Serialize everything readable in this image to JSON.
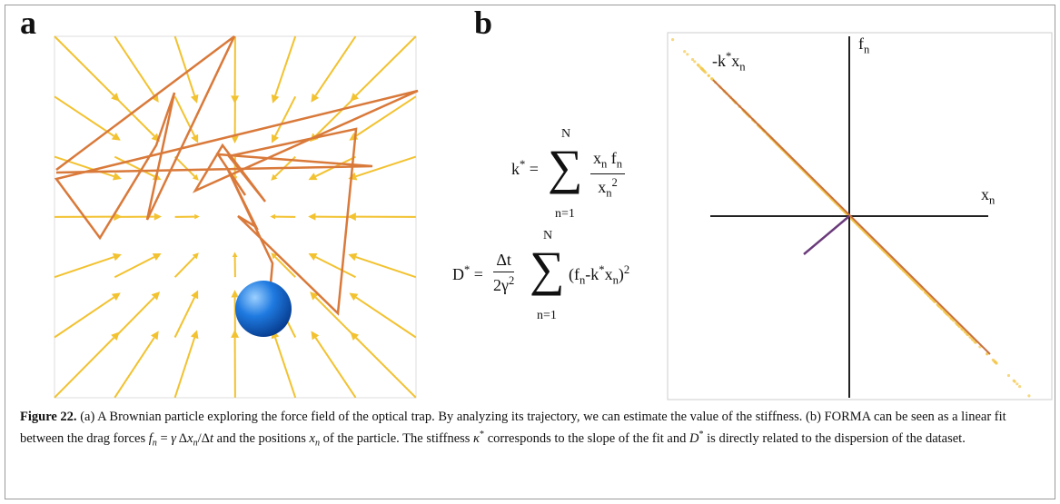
{
  "panel_a": {
    "label": "a"
  },
  "panel_b": {
    "label": "b",
    "axis_labels": {
      "y": [
        {
          "text": "f"
        },
        {
          "text": "n",
          "pos": "sub"
        }
      ],
      "x": [
        {
          "text": "x"
        },
        {
          "text": "n",
          "pos": "sub"
        }
      ],
      "fit": [
        {
          "text": "-k"
        },
        {
          "text": "*",
          "pos": "sup"
        },
        {
          "text": "x"
        },
        {
          "text": "n",
          "pos": "sub"
        }
      ]
    }
  },
  "formulas": {
    "stiffness": {
      "lhs": [
        {
          "text": "k"
        },
        {
          "text": "*",
          "pos": "sup"
        },
        {
          "text": " ="
        }
      ],
      "sum": "∑",
      "upper": "N",
      "lower": "n=1",
      "numerator": [
        {
          "text": "x"
        },
        {
          "text": "n",
          "pos": "sub"
        },
        {
          "text": " f"
        },
        {
          "text": "n",
          "pos": "sub"
        }
      ],
      "denominator": [
        {
          "text": "x"
        },
        {
          "text": "n",
          "pos": "sub"
        },
        {
          "text": "2",
          "pos": "sup"
        }
      ]
    },
    "diffusion": {
      "lhs": [
        {
          "text": "D"
        },
        {
          "text": "*",
          "pos": "sup"
        },
        {
          "text": " ="
        }
      ],
      "prefactor_num": [
        {
          "text": "Δt"
        }
      ],
      "prefactor_den": [
        {
          "text": "2γ"
        },
        {
          "text": "2",
          "pos": "sup"
        }
      ],
      "sum": "∑",
      "upper": "N",
      "lower": "n=1",
      "term": [
        {
          "text": "(f"
        },
        {
          "text": "n",
          "pos": "sub"
        },
        {
          "text": "-k"
        },
        {
          "text": "*",
          "pos": "sup"
        },
        {
          "text": "x"
        },
        {
          "text": "n",
          "pos": "sub"
        },
        {
          "text": ")"
        },
        {
          "text": "2",
          "pos": "sup"
        }
      ]
    }
  },
  "caption": [
    {
      "text": "Figure 22.",
      "style": "bold"
    },
    {
      "text": " (a) A Brownian particle exploring the force field of the optical trap. By analyzing its trajectory, we can estimate the value of the stiffness. (b) FORMA can be seen as a linear fit between the drag forces "
    },
    {
      "text": "f",
      "style": "italic"
    },
    {
      "text": "n",
      "style": "italic",
      "pos": "sub"
    },
    {
      "text": " = "
    },
    {
      "text": "γ",
      "style": "italic"
    },
    {
      "text": " Δ"
    },
    {
      "text": "x",
      "style": "italic"
    },
    {
      "text": "n",
      "style": "italic",
      "pos": "sub"
    },
    {
      "text": "/Δ"
    },
    {
      "text": "t",
      "style": "italic"
    },
    {
      "text": " and the positions "
    },
    {
      "text": "x",
      "style": "italic"
    },
    {
      "text": "n",
      "style": "italic",
      "pos": "sub"
    },
    {
      "text": " of the particle. The stiffness "
    },
    {
      "text": "κ",
      "style": "italic"
    },
    {
      "text": "*",
      "pos": "sup"
    },
    {
      "text": " corresponds to the slope of the fit and "
    },
    {
      "text": "D",
      "style": "italic"
    },
    {
      "text": "*",
      "pos": "sup"
    },
    {
      "text": " is directly related to the dispersion of the dataset."
    }
  ]
}
